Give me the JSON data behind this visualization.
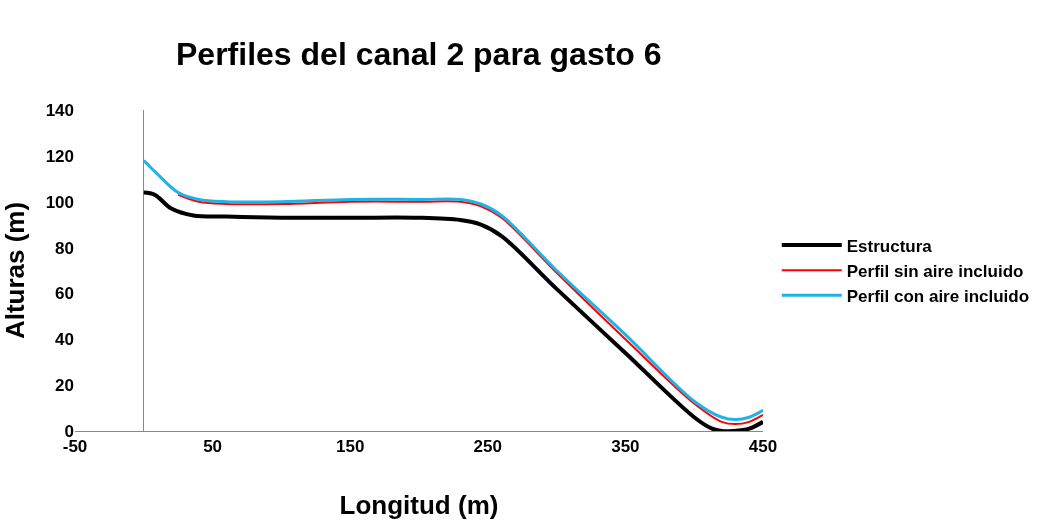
{
  "chart_data": {
    "type": "line",
    "title": "Perfiles del canal 2 para gasto 6",
    "xlabel": "Longitud (m)",
    "ylabel": "Alturas (m)",
    "xlim": [
      -50,
      450
    ],
    "xticks": [
      -50,
      50,
      150,
      250,
      350,
      450
    ],
    "ylim": [
      0,
      140
    ],
    "yticks": [
      0,
      20,
      40,
      60,
      80,
      100,
      120,
      140
    ],
    "legend": "right",
    "marker": "none",
    "line_style": "solid",
    "series": [
      {
        "name": "Estructura",
        "color": "#000000",
        "x": [
          0,
          8,
          20,
          36,
          60,
          100,
          150,
          200,
          230,
          245,
          260,
          300,
          350,
          400,
          413,
          420,
          428,
          440,
          450
        ],
        "values": [
          104,
          103,
          97,
          94,
          93.5,
          93,
          93,
          93,
          92,
          90,
          85,
          62,
          34,
          6,
          1,
          0,
          0,
          1,
          4
        ]
      },
      {
        "name": "Perfil sin aire incluido",
        "color": "#ff0000",
        "x": [
          25,
          40,
          60,
          100,
          150,
          200,
          230,
          245,
          260,
          300,
          350,
          400,
          420,
          430,
          440,
          450
        ],
        "values": [
          103,
          100,
          99,
          99,
          100,
          100,
          100,
          98,
          93,
          69,
          40,
          12,
          4,
          3,
          4,
          7
        ]
      },
      {
        "name": "Perfil con aire incluido",
        "color": "#1eb4e6",
        "x": [
          0,
          10,
          25,
          40,
          60,
          100,
          150,
          200,
          230,
          245,
          260,
          300,
          350,
          400,
          420,
          430,
          440,
          450
        ],
        "values": [
          118,
          112,
          104,
          101,
          100,
          100,
          101,
          101,
          101,
          99,
          94,
          70,
          42,
          13,
          6,
          5,
          6,
          9
        ]
      }
    ]
  }
}
